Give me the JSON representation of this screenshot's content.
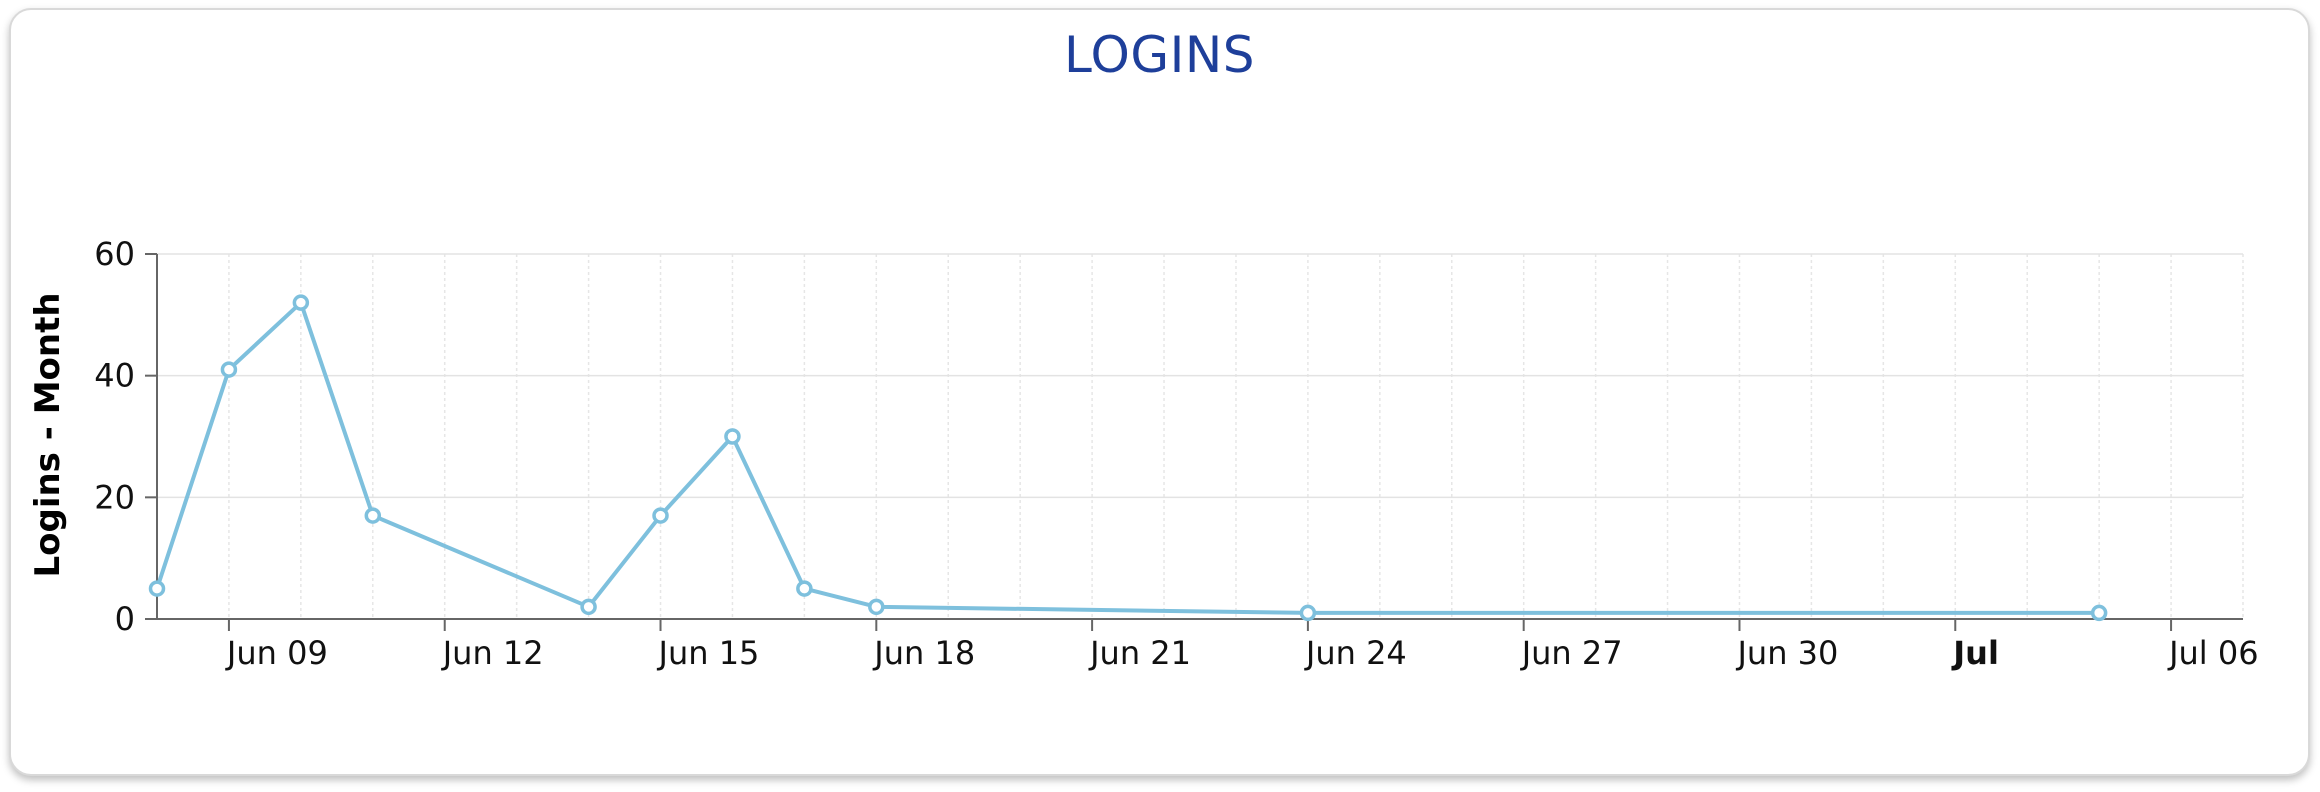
{
  "chart_data": {
    "type": "line",
    "title": "LOGINS",
    "ylabel": "Logins - Month",
    "xlabel": "",
    "ylim": [
      0,
      60
    ],
    "xlim": [
      "Jun 08",
      "Jul 07"
    ],
    "y_ticks": [
      0,
      20,
      40,
      60
    ],
    "x_ticks": [
      {
        "date": "Jun 09",
        "label": "Jun 09",
        "bold": false
      },
      {
        "date": "Jun 12",
        "label": "Jun 12",
        "bold": false
      },
      {
        "date": "Jun 15",
        "label": "Jun 15",
        "bold": false
      },
      {
        "date": "Jun 18",
        "label": "Jun 18",
        "bold": false
      },
      {
        "date": "Jun 21",
        "label": "Jun 21",
        "bold": false
      },
      {
        "date": "Jun 24",
        "label": "Jun 24",
        "bold": false
      },
      {
        "date": "Jun 27",
        "label": "Jun 27",
        "bold": false
      },
      {
        "date": "Jun 30",
        "label": "Jun 30",
        "bold": false
      },
      {
        "date": "Jul 03",
        "label": "Jul",
        "bold": true
      },
      {
        "date": "Jul 06",
        "label": "Jul 06",
        "bold": false
      }
    ],
    "grid": true,
    "legend": "none",
    "colors": {
      "line": "#7ec0dd",
      "title": "#1e3f9a",
      "grid": "#e3e3e3"
    },
    "series": [
      {
        "points": [
          {
            "x": "Jun 08",
            "y": 5
          },
          {
            "x": "Jun 09",
            "y": 41
          },
          {
            "x": "Jun 10",
            "y": 52
          },
          {
            "x": "Jun 11",
            "y": 17
          },
          {
            "x": "Jun 14",
            "y": 2
          },
          {
            "x": "Jun 15",
            "y": 17
          },
          {
            "x": "Jun 16",
            "y": 30
          },
          {
            "x": "Jun 17",
            "y": 5
          },
          {
            "x": "Jun 18",
            "y": 2
          },
          {
            "x": "Jun 24",
            "y": 1
          },
          {
            "x": "Jul 05",
            "y": 1
          }
        ]
      }
    ]
  }
}
